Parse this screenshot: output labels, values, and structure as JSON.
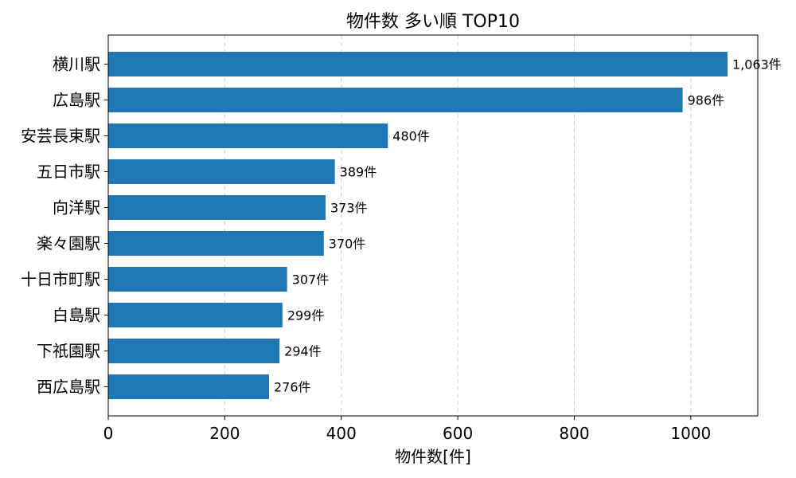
{
  "chart_data": {
    "type": "bar",
    "orientation": "horizontal",
    "title": "物件数 多い順 TOP10",
    "xlabel": "物件数[件]",
    "ylabel": "",
    "categories": [
      "横川駅",
      "広島駅",
      "安芸長束駅",
      "五日市駅",
      "向洋駅",
      "楽々園駅",
      "十日市町駅",
      "白島駅",
      "下祇園駅",
      "西広島駅"
    ],
    "values": [
      1063,
      986,
      480,
      389,
      373,
      370,
      307,
      299,
      294,
      276
    ],
    "data_labels": [
      "1,063件",
      "986件",
      "480件",
      "389件",
      "373件",
      "370件",
      "307件",
      "299件",
      "294件",
      "276件"
    ],
    "xlim": [
      0,
      1115
    ],
    "xticks": [
      0,
      200,
      400,
      600,
      800,
      1000
    ],
    "grid": "x-dashed",
    "bar_color": "#1f77b4"
  }
}
